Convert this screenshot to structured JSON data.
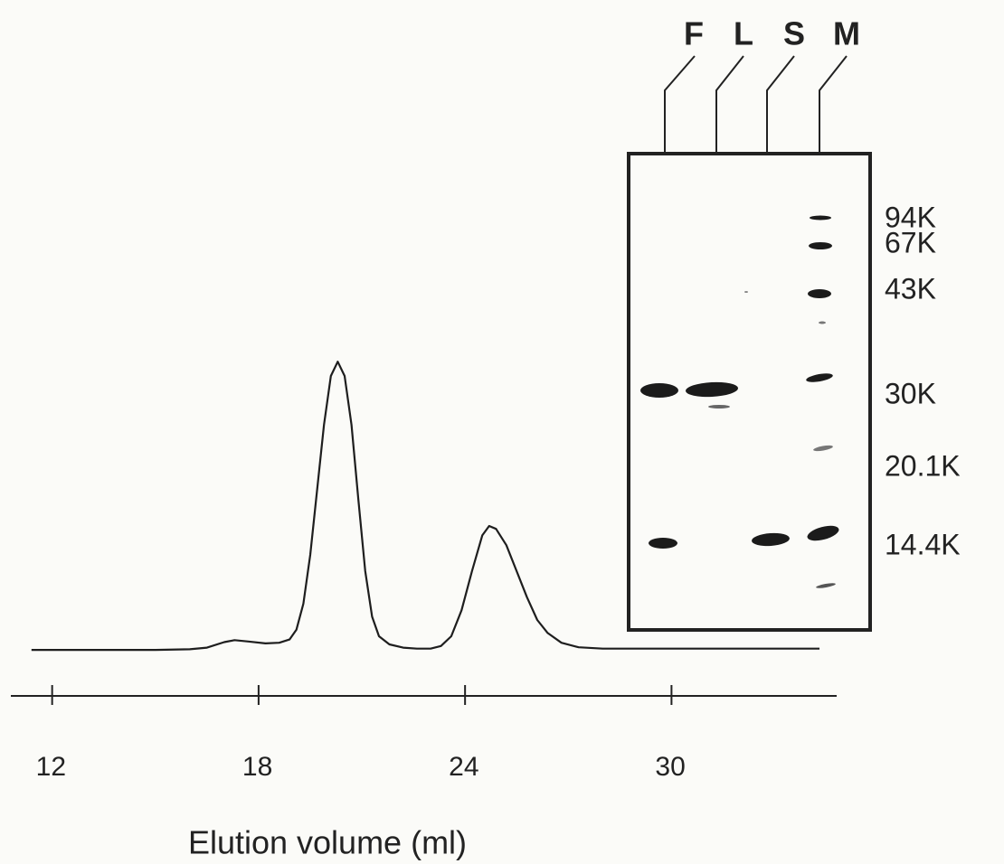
{
  "chart_data": {
    "type": "line",
    "x_label": "Elution volume  (ml)",
    "x": [
      11.4,
      13,
      15,
      16,
      16.5,
      17,
      17.3,
      17.7,
      18.2,
      18.6,
      18.9,
      19.1,
      19.3,
      19.5,
      19.7,
      19.9,
      20.1,
      20.3,
      20.5,
      20.7,
      20.9,
      21.1,
      21.3,
      21.5,
      21.8,
      22.2,
      22.6,
      23.0,
      23.3,
      23.6,
      23.9,
      24.2,
      24.5,
      24.7,
      24.9,
      25.2,
      25.5,
      25.8,
      26.1,
      26.4,
      26.8,
      27.3,
      28,
      30,
      32,
      34.3
    ],
    "values": [
      0.058,
      0.058,
      0.058,
      0.06,
      0.065,
      0.082,
      0.088,
      0.084,
      0.078,
      0.08,
      0.09,
      0.12,
      0.2,
      0.35,
      0.55,
      0.75,
      0.9,
      0.944,
      0.9,
      0.75,
      0.52,
      0.3,
      0.16,
      0.1,
      0.075,
      0.065,
      0.062,
      0.062,
      0.07,
      0.1,
      0.18,
      0.3,
      0.41,
      0.439,
      0.43,
      0.38,
      0.3,
      0.22,
      0.15,
      0.11,
      0.08,
      0.066,
      0.062,
      0.062,
      0.062,
      0.062
    ],
    "color": "#1e1e1e",
    "xlim": [
      10.8,
      34.8
    ],
    "xticks": [
      12,
      18,
      24,
      30
    ],
    "ylim": [
      0,
      1
    ]
  },
  "gel_inset": {
    "lanes": [
      "F",
      "L",
      "S",
      "M"
    ],
    "markers": [
      "94K",
      "67K",
      "43K",
      "30K",
      "20.1K",
      "14.4K"
    ]
  }
}
